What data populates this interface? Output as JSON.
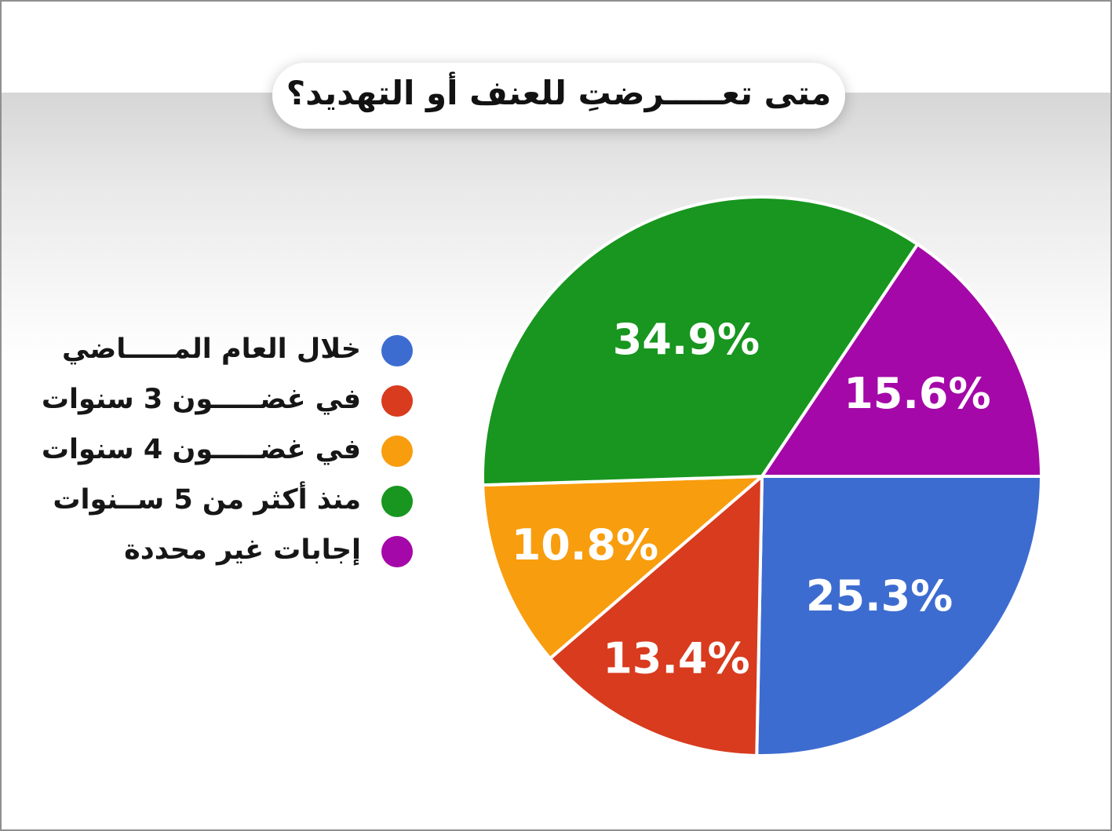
{
  "title": "متى تعـــــرضتِ للعنف أو التهديد؟",
  "chart_data": {
    "type": "pie",
    "title": "متى تعـــــرضتِ للعنف أو التهديد؟",
    "start_angle_clockwise_from_3oclock_deg": 0,
    "direction": "clockwise",
    "legend_position": "left",
    "labels_inside": true,
    "label_color": "#ffffff",
    "separator_color": "#ffffff",
    "slices": [
      {
        "label": "خلال العام المـــــاضي",
        "value": 25.3,
        "display": "25.3%",
        "color": "#3d6cd1",
        "label_radius_fraction": 0.6
      },
      {
        "label": "في غضـــــون 3 سنوات",
        "value": 13.4,
        "display": "13.4%",
        "color": "#d83b1e",
        "label_radius_fraction": 0.72
      },
      {
        "label": "في غضـــــون 4 سنوات",
        "value": 10.8,
        "display": "10.8%",
        "color": "#f89d0d",
        "label_radius_fraction": 0.68
      },
      {
        "label": "منذ أكثر من 5 ســنوات",
        "value": 34.9,
        "display": "34.9%",
        "color": "#18961f",
        "label_radius_fraction": 0.56
      },
      {
        "label": "إجابات غير محددة",
        "value": 15.6,
        "display": "15.6%",
        "color": "#a508a8",
        "label_radius_fraction": 0.63
      }
    ]
  }
}
